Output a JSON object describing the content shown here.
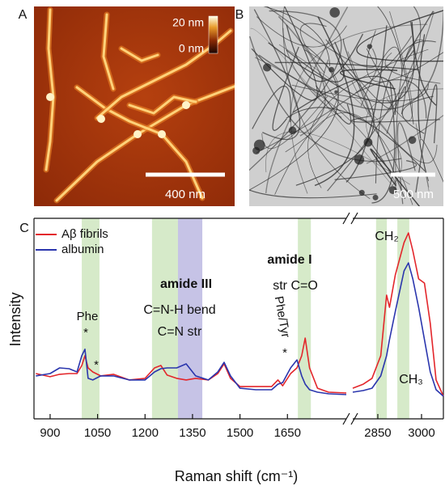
{
  "panels": {
    "a": {
      "label": "A",
      "colorbar_max": "20 nm",
      "colorbar_min": "0 nm",
      "scale_bar": "400 nm"
    },
    "b": {
      "label": "B",
      "scale_bar": "500 nm"
    },
    "c": {
      "label": "C"
    }
  },
  "chart_data": {
    "type": "line",
    "x_label": "Raman shift (cm⁻¹)",
    "y_label": "Intensity",
    "legend": "upper left",
    "xlim": [
      [
        849,
        1836
      ],
      [
        2764,
        3075
      ]
    ],
    "xticks": [
      900,
      1050,
      1200,
      1350,
      1500,
      1650,
      2850,
      3000
    ],
    "ylim": [
      0,
      100
    ],
    "x": [
      855,
      900,
      930,
      960,
      985,
      1000,
      1010,
      1020,
      1035,
      1060,
      1100,
      1150,
      1200,
      1230,
      1250,
      1270,
      1300,
      1330,
      1360,
      1400,
      1430,
      1450,
      1470,
      1500,
      1550,
      1600,
      1620,
      1635,
      1660,
      1680,
      1695,
      1706,
      1720,
      1745,
      1780,
      1836,
      2764,
      2800,
      2830,
      2860,
      2880,
      2890,
      2910,
      2940,
      2955,
      2970,
      2990,
      3010,
      3030,
      3050,
      3075
    ],
    "series": [
      {
        "name": "Aβ fibrils",
        "color": "#e3262b",
        "values": [
          22.6,
          21.0,
          22.2,
          22.6,
          22.6,
          26.6,
          31.5,
          25.4,
          23.4,
          21.4,
          22.2,
          19.4,
          20.2,
          25.4,
          26.6,
          21.8,
          20.2,
          19.4,
          20.2,
          19.4,
          22.6,
          27.4,
          20.2,
          16.1,
          16.1,
          16.1,
          19.4,
          16.5,
          22.6,
          25.4,
          31.5,
          40.3,
          25.4,
          15.3,
          13.3,
          12.9,
          15.3,
          17.3,
          20.2,
          31.5,
          61.7,
          55.6,
          71.8,
          87.9,
          92.7,
          83.9,
          69.8,
          67.7,
          47.6,
          19.4,
          11.3
        ]
      },
      {
        "name": "albumin",
        "color": "#2a35ad",
        "values": [
          21.4,
          22.6,
          25.4,
          25.0,
          23.4,
          31.5,
          34.7,
          20.2,
          19.4,
          21.4,
          21.4,
          19.4,
          19.4,
          23.4,
          25.0,
          25.4,
          25.4,
          27.4,
          21.4,
          19.4,
          23.4,
          28.2,
          21.4,
          15.3,
          14.5,
          14.5,
          17.3,
          18.1,
          25.4,
          29.4,
          21.4,
          17.3,
          14.5,
          13.3,
          12.5,
          12.1,
          13.3,
          14.1,
          15.3,
          21.4,
          31.5,
          39.5,
          53.6,
          73.8,
          77.8,
          69.8,
          55.6,
          39.5,
          23.4,
          14.5,
          11.3
        ]
      }
    ],
    "bands": [
      {
        "range": [
          1000,
          1056
        ],
        "color": "#cfe6bf"
      },
      {
        "range": [
          1222,
          1304
        ],
        "color": "#cfe6bf"
      },
      {
        "range": [
          1304,
          1381
        ],
        "color": "#bcb8e2"
      },
      {
        "range": [
          1683,
          1724
        ],
        "color": "#cfe6bf"
      },
      {
        "range": [
          2844,
          2881
        ],
        "color": "#cfe6bf"
      },
      {
        "range": [
          2917,
          2958
        ],
        "color": "#cfe6bf"
      }
    ],
    "annotations": [
      "Phe",
      "*",
      "*",
      "amide III",
      "C=N-H bend",
      "C=N str",
      "amide I",
      "str C=O",
      "Phe/Tyr",
      "*",
      "CH₂",
      "CH₃"
    ]
  }
}
